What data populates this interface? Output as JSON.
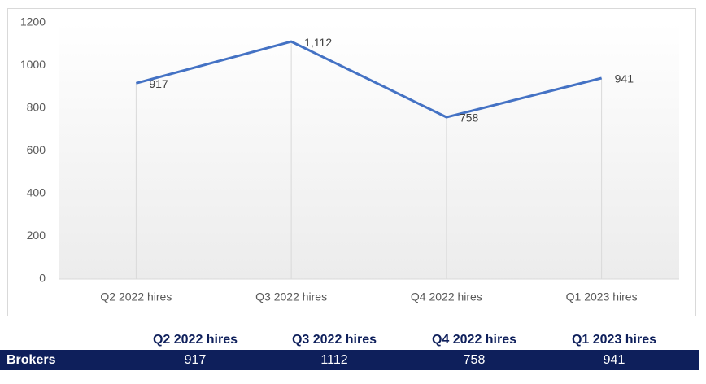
{
  "chart_data": {
    "type": "line",
    "categories": [
      "Q2 2022 hires",
      "Q3 2022 hires",
      "Q4 2022 hires",
      "Q1 2023 hires"
    ],
    "values": [
      917,
      1112,
      758,
      941
    ],
    "value_labels": [
      "917",
      "1,112",
      "758",
      "941"
    ],
    "color": "#4472c4",
    "ylim": [
      0,
      1200
    ],
    "yticks": [
      0,
      200,
      400,
      600,
      800,
      1000,
      1200
    ],
    "drop_lines": true
  },
  "table": {
    "columns": [
      "Q2 2022 hires",
      "Q3 2022 hires",
      "Q4 2022 hires",
      "Q1 2023 hires"
    ],
    "rows": [
      [
        "Brokers",
        917,
        1112,
        758,
        941
      ]
    ]
  }
}
